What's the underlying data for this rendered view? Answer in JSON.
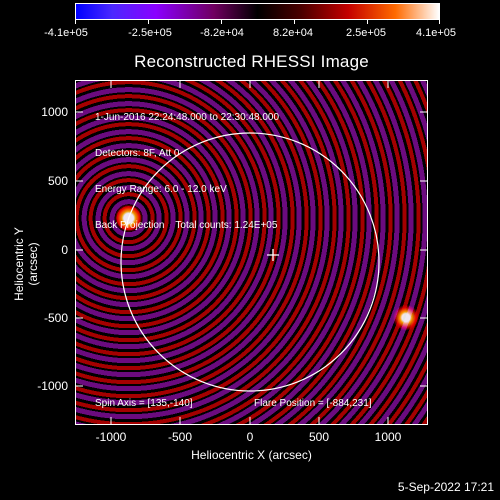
{
  "colorbar": {
    "ticks": [
      "-4.1e+05",
      "-2.5e+05",
      "-8.2e+04",
      "8.2e+04",
      "2.5e+05",
      "4.1e+05"
    ]
  },
  "plot": {
    "title": "Reconstructed RHESSI Image",
    "info_lines": [
      "1-Jun-2016 22:24:48.000 to 22:30:48.000",
      "Detectors: 8F, Att 0",
      "Energy Range: 6.0 - 12.0 keV",
      "Back Projection    Total counts: 1.24E+05"
    ],
    "spin_axis": "Spin Axis = [135,-140]",
    "flare_position": "Flare Position = [-884,231]",
    "x_label": "Heliocentric X (arcsec)",
    "y_label": "Heliocentric Y (arcsec)",
    "x_ticks": [
      "-1000",
      "-500",
      "0",
      "500",
      "1000"
    ],
    "y_ticks": [
      "1000",
      "500",
      "0",
      "-500",
      "-1000"
    ]
  },
  "footer": {
    "timestamp": "5-Sep-2022 17:21"
  }
}
